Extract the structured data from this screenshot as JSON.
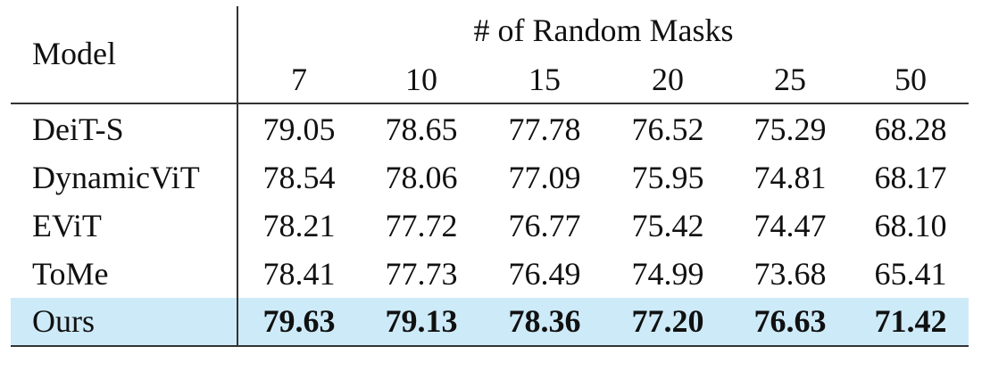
{
  "table": {
    "header": {
      "model_label": "Model",
      "group_label": "# of Random Masks",
      "columns": [
        "7",
        "10",
        "15",
        "20",
        "25",
        "50"
      ]
    },
    "rows": [
      {
        "model": "DeiT-S",
        "values": [
          "79.05",
          "78.65",
          "77.78",
          "76.52",
          "75.29",
          "68.28"
        ]
      },
      {
        "model": "DynamicViT",
        "values": [
          "78.54",
          "78.06",
          "77.09",
          "75.95",
          "74.81",
          "68.17"
        ]
      },
      {
        "model": "EViT",
        "values": [
          "78.21",
          "77.72",
          "76.77",
          "75.42",
          "74.47",
          "68.10"
        ]
      },
      {
        "model": "ToMe",
        "values": [
          "78.41",
          "77.73",
          "76.49",
          "74.99",
          "73.68",
          "65.41"
        ]
      },
      {
        "model": "Ours",
        "values": [
          "79.63",
          "79.13",
          "78.36",
          "77.20",
          "76.63",
          "71.42"
        ],
        "highlight": true,
        "bold": true
      }
    ],
    "highlight_color": "#cdeaf8"
  }
}
